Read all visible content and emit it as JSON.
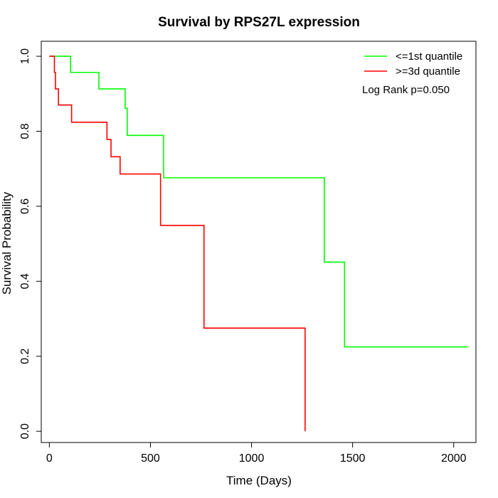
{
  "chart_data": {
    "type": "line",
    "step": true,
    "title": "Survival by RPS27L expression",
    "xlabel": "Time (Days)",
    "ylabel": "Survival Probability",
    "xlim": [
      -40,
      2110
    ],
    "ylim": [
      -0.03,
      1.04
    ],
    "xticks": [
      0,
      500,
      1000,
      1500,
      2000
    ],
    "yticks": [
      0.0,
      0.2,
      0.4,
      0.6,
      0.8,
      1.0
    ],
    "xtick_labels": [
      "0",
      "500",
      "1000",
      "1500",
      "2000"
    ],
    "ytick_labels": [
      "0.0",
      "0.2",
      "0.4",
      "0.6",
      "0.8",
      "1.0"
    ],
    "grid": false,
    "legend_position": "top-right",
    "annotation": "Log Rank p=0.050",
    "series": [
      {
        "name": "<=1st quantile",
        "color": "#00ff00",
        "x": [
          0,
          105,
          245,
          375,
          385,
          565,
          1360,
          1460,
          2070
        ],
        "y": [
          1.0,
          0.957,
          0.913,
          0.861,
          0.789,
          0.676,
          0.451,
          0.225,
          0.225
        ]
      },
      {
        "name": ">=3d quantile",
        "color": "#ff0000",
        "x": [
          0,
          25,
          30,
          45,
          110,
          285,
          305,
          350,
          550,
          765,
          1265
        ],
        "y": [
          1.0,
          0.957,
          0.913,
          0.87,
          0.824,
          0.778,
          0.732,
          0.686,
          0.549,
          0.275,
          0.0
        ]
      }
    ]
  }
}
